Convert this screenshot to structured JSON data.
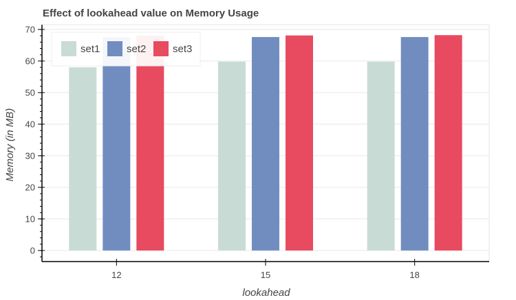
{
  "chart_data": {
    "type": "bar",
    "title": "Effect of lookahead value on Memory Usage",
    "xlabel": "lookahead",
    "ylabel": "Memory (in MB)",
    "categories": [
      "12",
      "15",
      "18"
    ],
    "ylim": [
      -3.5,
      71.5
    ],
    "yticks": [
      0,
      10,
      20,
      30,
      40,
      50,
      60,
      70
    ],
    "grid": true,
    "legend_position": "top-left",
    "series": [
      {
        "name": "set1",
        "color": "#c9dbd5",
        "values": [
          58.0,
          59.8,
          59.8
        ]
      },
      {
        "name": "set2",
        "color": "#718dc0",
        "values": [
          67.6,
          67.6,
          67.6
        ]
      },
      {
        "name": "set3",
        "color": "#e84a5f",
        "values": [
          68.0,
          68.1,
          68.2
        ]
      }
    ]
  }
}
